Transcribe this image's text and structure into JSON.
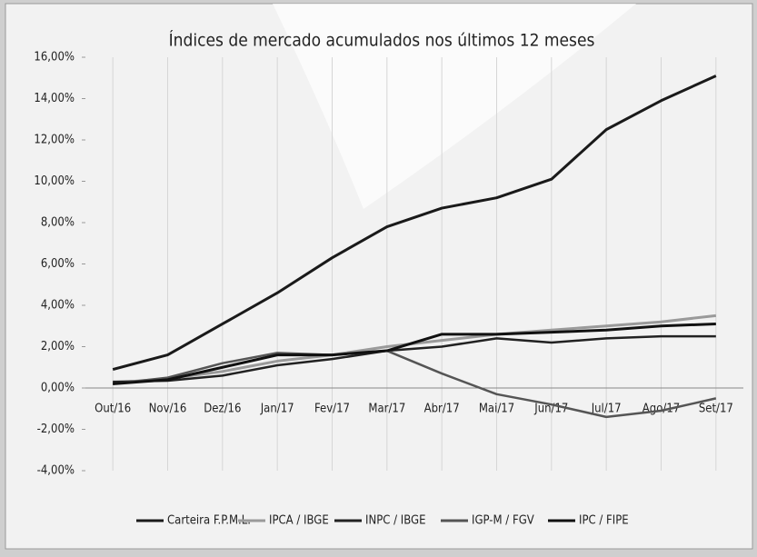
{
  "chart_data": {
    "type": "line",
    "title": "Índices de mercado acumulados nos últimos 12 meses",
    "categories": [
      "Out/16",
      "Nov/16",
      "Dez/16",
      "Jan/17",
      "Fev/17",
      "Mar/17",
      "Abr/17",
      "Mai/17",
      "Jun/17",
      "Jul/17",
      "Ago/17",
      "Set/17"
    ],
    "series": [
      {
        "name": "Carteira F.P.M.L.",
        "color": "#1a1a1a",
        "values": [
          0.9,
          1.6,
          3.1,
          4.6,
          6.3,
          7.8,
          8.7,
          9.2,
          10.1,
          12.5,
          13.9,
          15.1
        ]
      },
      {
        "name": "IPCA / IBGE",
        "color": "#9a9a9a",
        "values": [
          0.25,
          0.45,
          0.8,
          1.3,
          1.6,
          2.0,
          2.3,
          2.6,
          2.8,
          3.0,
          3.2,
          3.5
        ]
      },
      {
        "name": "INPC / IBGE",
        "color": "#222222",
        "values": [
          0.3,
          0.35,
          0.6,
          1.1,
          1.4,
          1.8,
          2.0,
          2.4,
          2.2,
          2.4,
          2.5,
          2.5
        ]
      },
      {
        "name": "IGP-M / FGV",
        "color": "#555555",
        "values": [
          0.2,
          0.5,
          1.2,
          1.7,
          1.6,
          1.8,
          0.7,
          -0.3,
          -0.8,
          -1.4,
          -1.1,
          -0.5
        ]
      },
      {
        "name": "IPC / FIPE",
        "color": "#111111",
        "values": [
          0.2,
          0.4,
          1.0,
          1.6,
          1.6,
          1.8,
          2.6,
          2.6,
          2.7,
          2.8,
          3.0,
          3.1
        ]
      }
    ],
    "ylim": [
      -4,
      16
    ],
    "yticks": [
      {
        "value": -4,
        "label": "-4,00%"
      },
      {
        "value": -2,
        "label": "-2,00%"
      },
      {
        "value": 0,
        "label": "0,00%"
      },
      {
        "value": 2,
        "label": "2,00%"
      },
      {
        "value": 4,
        "label": "4,00%"
      },
      {
        "value": 6,
        "label": "6,00%"
      },
      {
        "value": 8,
        "label": "8,00%"
      },
      {
        "value": 10,
        "label": "10,00%"
      },
      {
        "value": 12,
        "label": "12,00%"
      },
      {
        "value": 14,
        "label": "14,00%"
      },
      {
        "value": 16,
        "label": "16,00%"
      }
    ],
    "legend": "bottom"
  }
}
